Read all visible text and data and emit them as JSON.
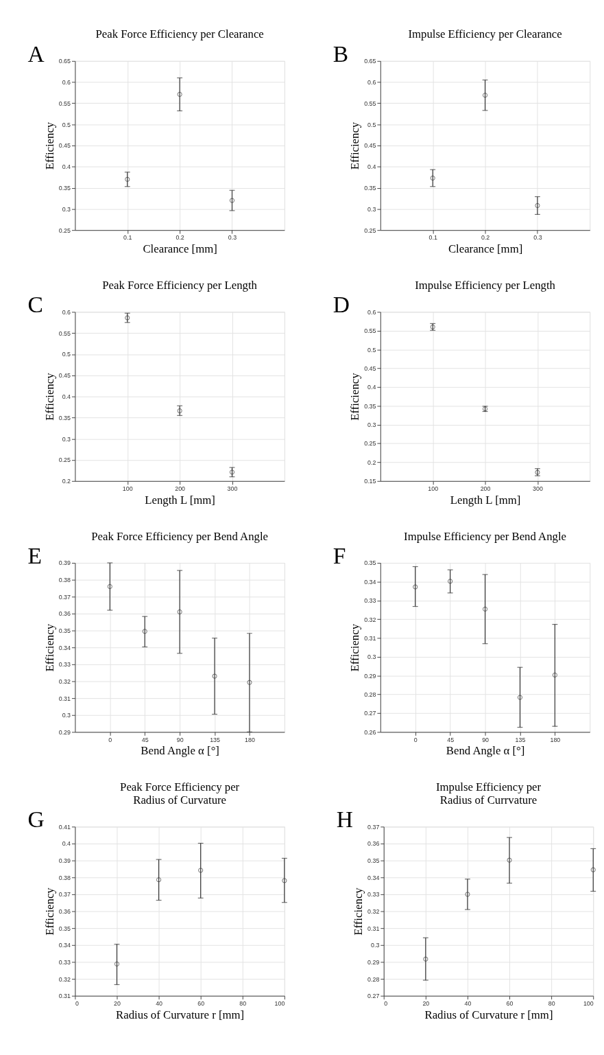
{
  "chart_data": [
    {
      "type": "scatter",
      "title": "Peak Force Efficiency per Clearance",
      "xlabel": "Clearance [mm]",
      "ylabel": "Efficiency",
      "annotations": [
        "A"
      ],
      "x": [
        0.1,
        0.2,
        0.3
      ],
      "xlim": [
        0,
        0.4
      ],
      "xticks": [
        0.1,
        0.2,
        0.3
      ],
      "ylim": [
        0.25,
        0.65
      ],
      "yticks": [
        0.25,
        0.3,
        0.35,
        0.4,
        0.45,
        0.5,
        0.55,
        0.6,
        0.65
      ],
      "grid": true,
      "marker": "circle",
      "series": [
        {
          "color": "#333333",
          "values": [
            0.37,
            0.571,
            0.32
          ],
          "errors": [
            [
              0.353,
              0.387
            ],
            [
              0.532,
              0.61
            ],
            [
              0.296,
              0.344
            ]
          ]
        }
      ]
    },
    {
      "type": "scatter",
      "title": "Impulse Efficiency per Clearance",
      "xlabel": "Clearance [mm]",
      "ylabel": "Efficiency",
      "annotations": [
        "B"
      ],
      "x": [
        0.1,
        0.2,
        0.3
      ],
      "xlim": [
        0,
        0.4
      ],
      "xticks": [
        0.1,
        0.2,
        0.3
      ],
      "ylim": [
        0.25,
        0.65
      ],
      "yticks": [
        0.25,
        0.3,
        0.35,
        0.4,
        0.45,
        0.5,
        0.55,
        0.6,
        0.65
      ],
      "grid": true,
      "marker": "circle",
      "series": [
        {
          "color": "#333333",
          "values": [
            0.373,
            0.569,
            0.308
          ],
          "errors": [
            [
              0.353,
              0.393
            ],
            [
              0.533,
              0.605
            ],
            [
              0.287,
              0.329
            ]
          ]
        }
      ]
    },
    {
      "type": "scatter",
      "title": "Peak Force Efficiency per Length",
      "xlabel": "Length L [mm]",
      "ylabel": "Efficiency",
      "annotations": [
        "C"
      ],
      "x": [
        100,
        200,
        300
      ],
      "xlim": [
        0,
        400
      ],
      "xticks": [
        100,
        200,
        300
      ],
      "ylim": [
        0.2,
        0.6
      ],
      "yticks": [
        0.2,
        0.25,
        0.3,
        0.35,
        0.4,
        0.45,
        0.5,
        0.55,
        0.6
      ],
      "grid": true,
      "marker": "circle",
      "series": [
        {
          "color": "#333333",
          "values": [
            0.586,
            0.366,
            0.221
          ],
          "errors": [
            [
              0.575,
              0.597
            ],
            [
              0.355,
              0.378
            ],
            [
              0.21,
              0.232
            ]
          ]
        }
      ]
    },
    {
      "type": "scatter",
      "title": "Impulse Efficiency per Length",
      "xlabel": "Length L [mm]",
      "ylabel": "Efficiency",
      "annotations": [
        "D"
      ],
      "x": [
        100,
        200,
        300
      ],
      "xlim": [
        0,
        400
      ],
      "xticks": [
        100,
        200,
        300
      ],
      "ylim": [
        0.15,
        0.6
      ],
      "yticks": [
        0.15,
        0.2,
        0.25,
        0.3,
        0.35,
        0.4,
        0.45,
        0.5,
        0.55,
        0.6
      ],
      "grid": true,
      "marker": "circle",
      "series": [
        {
          "color": "#333333",
          "values": [
            0.56,
            0.342,
            0.173
          ],
          "errors": [
            [
              0.551,
              0.569
            ],
            [
              0.335,
              0.349
            ],
            [
              0.164,
              0.183
            ]
          ]
        }
      ]
    },
    {
      "type": "scatter",
      "title": "Peak Force Efficiency per Bend Angle",
      "xlabel": "Bend Angle α [°]",
      "ylabel": "Efficiency",
      "annotations": [
        "E"
      ],
      "x": [
        0,
        45,
        90,
        135,
        180
      ],
      "xlim": [
        -45,
        225
      ],
      "xticks": [
        0,
        45,
        90,
        135,
        180
      ],
      "ylim": [
        0.29,
        0.39
      ],
      "yticks": [
        0.29,
        0.3,
        0.31,
        0.32,
        0.33,
        0.34,
        0.35,
        0.36,
        0.37,
        0.38,
        0.39
      ],
      "grid": true,
      "marker": "circle",
      "series": [
        {
          "color": "#333333",
          "values": [
            0.376,
            0.3495,
            0.361,
            0.323,
            0.3193
          ],
          "errors": [
            [
              0.362,
              0.39
            ],
            [
              0.3403,
              0.3583
            ],
            [
              0.3365,
              0.3855
            ],
            [
              0.3005,
              0.3455
            ],
            [
              0.29,
              0.3483
            ]
          ]
        }
      ]
    },
    {
      "type": "scatter",
      "title": "Impulse Efficiency per Bend Angle",
      "xlabel": "Bend Angle α [°]",
      "ylabel": "Efficiency",
      "annotations": [
        "F"
      ],
      "x": [
        0,
        45,
        90,
        135,
        180
      ],
      "xlim": [
        -45,
        225
      ],
      "xticks": [
        0,
        45,
        90,
        135,
        180
      ],
      "ylim": [
        0.26,
        0.35
      ],
      "yticks": [
        0.26,
        0.27,
        0.28,
        0.29,
        0.3,
        0.31,
        0.32,
        0.33,
        0.34,
        0.35
      ],
      "grid": true,
      "marker": "circle",
      "series": [
        {
          "color": "#333333",
          "values": [
            0.3372,
            0.3402,
            0.3254,
            0.2784,
            0.2903
          ],
          "errors": [
            [
              0.3268,
              0.348
            ],
            [
              0.334,
              0.3463
            ],
            [
              0.307,
              0.3438
            ],
            [
              0.2625,
              0.2944
            ],
            [
              0.263,
              0.3173
            ]
          ]
        }
      ]
    },
    {
      "type": "scatter",
      "title": "Peak Force Efficiency per\nRadius of Curvature",
      "xlabel": "Radius of Curvature r [mm]",
      "ylabel": "Efficiency",
      "annotations": [
        "G"
      ],
      "x": [
        20,
        40,
        60,
        100
      ],
      "xlim": [
        0,
        100
      ],
      "xticks": [
        0,
        20,
        40,
        60,
        80,
        100
      ],
      "ylim": [
        0.31,
        0.41
      ],
      "yticks": [
        0.31,
        0.32,
        0.33,
        0.34,
        0.35,
        0.36,
        0.37,
        0.38,
        0.39,
        0.4,
        0.41
      ],
      "grid": true,
      "marker": "circle",
      "series": [
        {
          "color": "#333333",
          "values": [
            0.3288,
            0.3786,
            0.3842,
            0.3781
          ],
          "errors": [
            [
              0.3166,
              0.3405
            ],
            [
              0.3665,
              0.3906
            ],
            [
              0.3678,
              0.4002
            ],
            [
              0.3652,
              0.3913
            ]
          ]
        }
      ]
    },
    {
      "type": "scatter",
      "title": "Impulse Efficiency per\nRadius of Currvature",
      "xlabel": "Radius of Curvature r [mm]",
      "ylabel": "Efficiency",
      "annotations": [
        "H"
      ],
      "x": [
        20,
        40,
        60,
        100
      ],
      "xlim": [
        0,
        100
      ],
      "xticks": [
        0,
        20,
        40,
        60,
        80,
        100
      ],
      "ylim": [
        0.27,
        0.37
      ],
      "yticks": [
        0.27,
        0.28,
        0.29,
        0.3,
        0.31,
        0.32,
        0.33,
        0.34,
        0.35,
        0.36,
        0.37
      ],
      "grid": true,
      "marker": "circle",
      "series": [
        {
          "color": "#333333",
          "values": [
            0.2917,
            0.33,
            0.3502,
            0.3445
          ],
          "errors": [
            [
              0.2792,
              0.3043
            ],
            [
              0.321,
              0.339
            ],
            [
              0.3366,
              0.3636
            ],
            [
              0.3318,
              0.357
            ]
          ]
        }
      ]
    }
  ]
}
